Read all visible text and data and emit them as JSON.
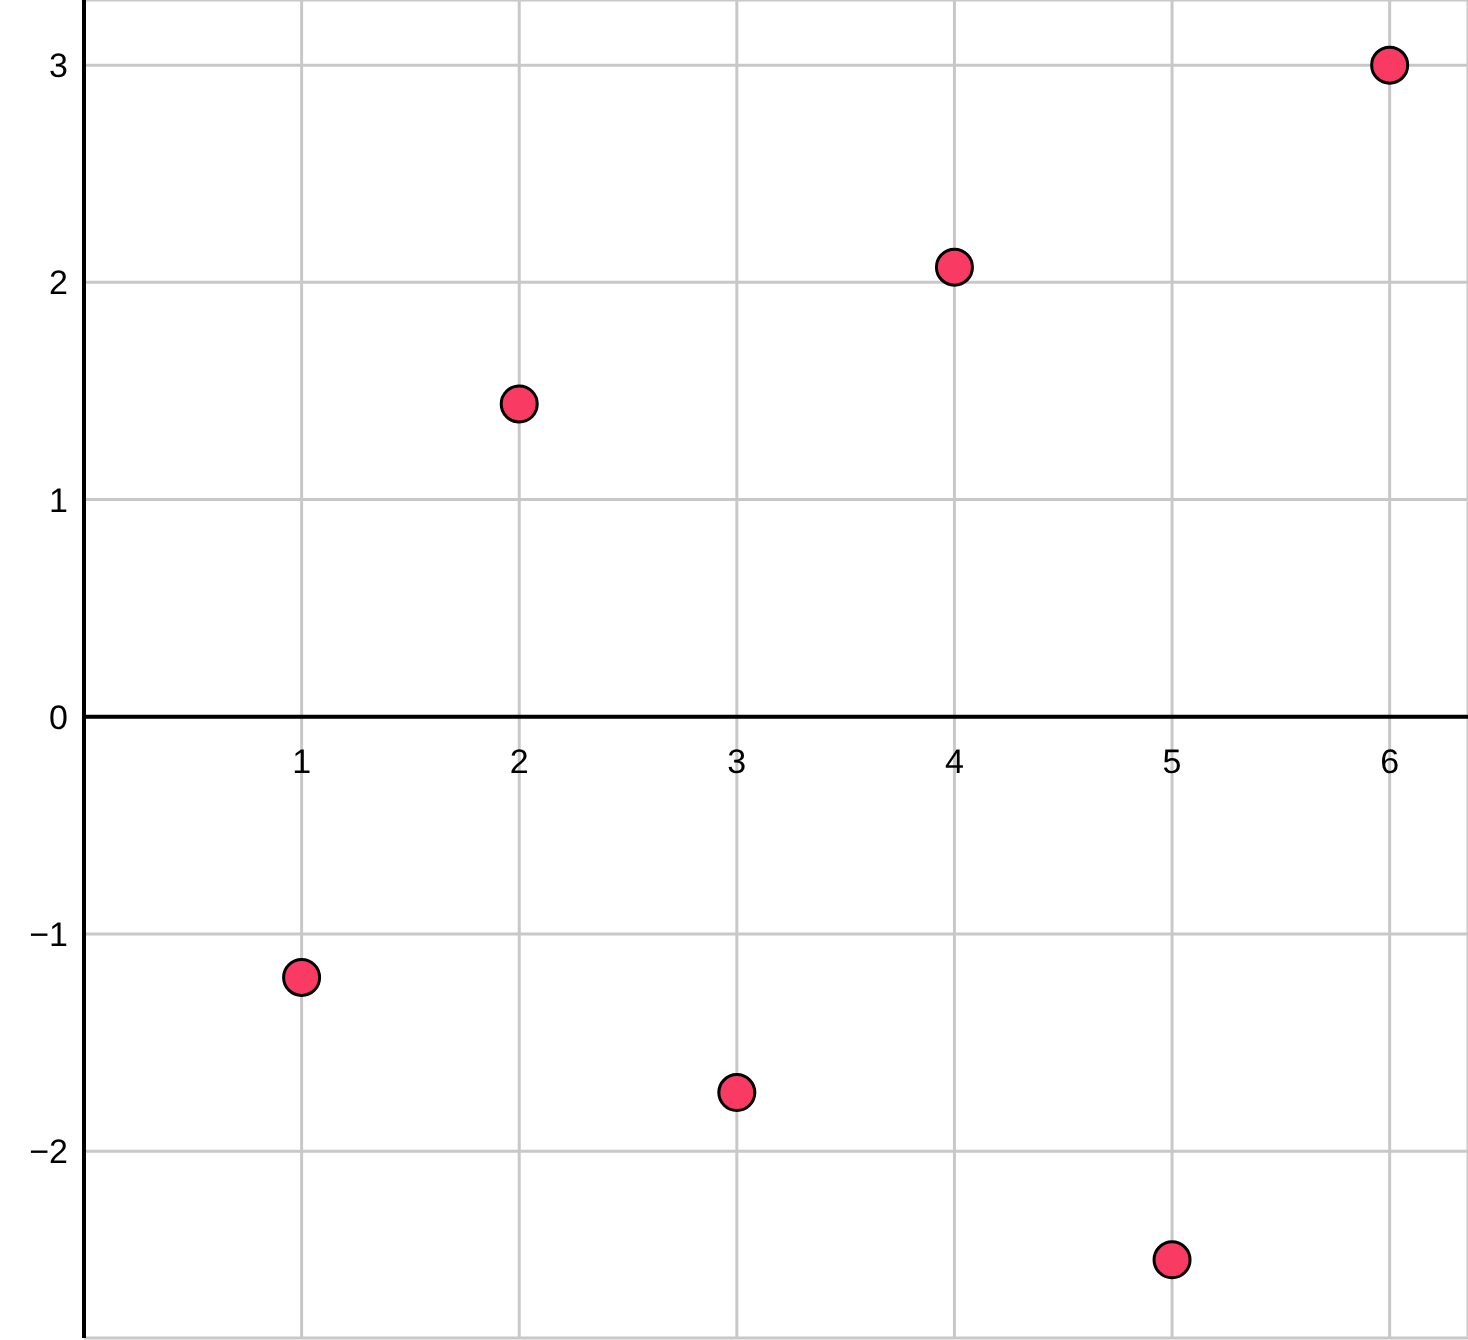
{
  "chart_data": {
    "type": "scatter",
    "x": [
      1,
      2,
      3,
      4,
      5,
      6
    ],
    "values": [
      -1.2,
      1.44,
      -1.73,
      2.07,
      -2.5,
      3.0
    ],
    "color": "#f93a62",
    "marker": "circle",
    "xlim": [
      0,
      6.36
    ],
    "ylim": [
      -2.86,
      3.3
    ],
    "xticks": [
      1,
      2,
      3,
      4,
      5,
      6
    ],
    "yticks": [
      {
        "value": -2,
        "label": "−2"
      },
      {
        "value": -1,
        "label": "−1"
      },
      0,
      1,
      2,
      3
    ],
    "grid": true
  }
}
